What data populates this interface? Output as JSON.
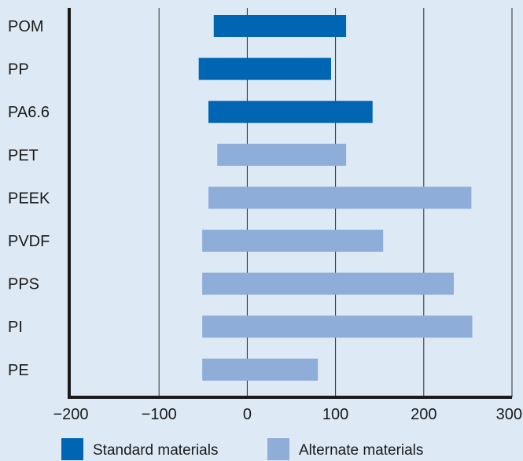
{
  "chart_data": {
    "type": "bar",
    "orientation": "horizontal",
    "title": "",
    "xlabel": "",
    "ylabel": "",
    "xlim": [
      -200,
      300
    ],
    "xticks": [
      -200,
      -100,
      0,
      100,
      200,
      300
    ],
    "xtick_labels": [
      "−200",
      "−100",
      "0",
      "100",
      "200",
      "300"
    ],
    "grid": "vertical",
    "legend_position": "bottom",
    "categories": [
      "POM",
      "PP",
      "PA6.6",
      "PET",
      "PEEK",
      "PVDF",
      "PPS",
      "PI",
      "PE"
    ],
    "bars": [
      {
        "category": "POM",
        "group": "Standard materials",
        "start": -38,
        "end": 112
      },
      {
        "category": "PP",
        "group": "Standard materials",
        "start": -55,
        "end": 95
      },
      {
        "category": "PA6.6",
        "group": "Standard materials",
        "start": -44,
        "end": 142
      },
      {
        "category": "PET",
        "group": "Alternate materials",
        "start": -34,
        "end": 112
      },
      {
        "category": "PEEK",
        "group": "Alternate materials",
        "start": -44,
        "end": 254
      },
      {
        "category": "PVDF",
        "group": "Alternate materials",
        "start": -51,
        "end": 154
      },
      {
        "category": "PPS",
        "group": "Alternate materials",
        "start": -51,
        "end": 234
      },
      {
        "category": "PI",
        "group": "Alternate materials",
        "start": -51,
        "end": 255
      },
      {
        "category": "PE",
        "group": "Alternate materials",
        "start": -51,
        "end": 80
      }
    ],
    "legend": [
      {
        "label": "Standard materials",
        "color": "#0066b3"
      },
      {
        "label": "Alternate materials",
        "color": "#8eadd8"
      }
    ],
    "colors": {
      "Standard materials": "#0066b3",
      "Alternate materials": "#8eadd8",
      "background": "#dde9f5",
      "axis": "#1a1a1a",
      "grid": "#2b2b2b"
    }
  }
}
